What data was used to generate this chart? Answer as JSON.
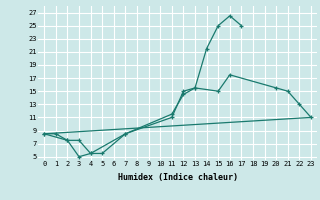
{
  "xlabel": "Humidex (Indice chaleur)",
  "background_color": "#cde8e8",
  "grid_color": "#ffffff",
  "line_color": "#1a7a6e",
  "ylim": [
    4.5,
    28
  ],
  "xlim": [
    -0.5,
    23.5
  ],
  "yticks": [
    5,
    7,
    9,
    11,
    13,
    15,
    17,
    19,
    21,
    23,
    25,
    27
  ],
  "xticks": [
    0,
    1,
    2,
    3,
    4,
    5,
    6,
    7,
    8,
    9,
    10,
    11,
    12,
    13,
    14,
    15,
    16,
    17,
    18,
    19,
    20,
    21,
    22,
    23
  ],
  "curve1_x": [
    0,
    1,
    2,
    3,
    4,
    7,
    11,
    12,
    13,
    14,
    15,
    16,
    17
  ],
  "curve1_y": [
    8.5,
    8.5,
    7.5,
    5.0,
    5.5,
    8.5,
    11.0,
    15.0,
    15.5,
    21.5,
    25.0,
    26.5,
    25.0
  ],
  "curve2_x": [
    0,
    2,
    3,
    4,
    5,
    7,
    11,
    12,
    13,
    15,
    16,
    20,
    21,
    22,
    23
  ],
  "curve2_y": [
    8.5,
    7.5,
    7.5,
    5.5,
    5.5,
    8.5,
    11.5,
    14.5,
    15.5,
    15.0,
    17.5,
    15.5,
    15.0,
    13.0,
    11.0
  ],
  "curve3_x": [
    0,
    23
  ],
  "curve3_y": [
    8.5,
    11.0
  ]
}
